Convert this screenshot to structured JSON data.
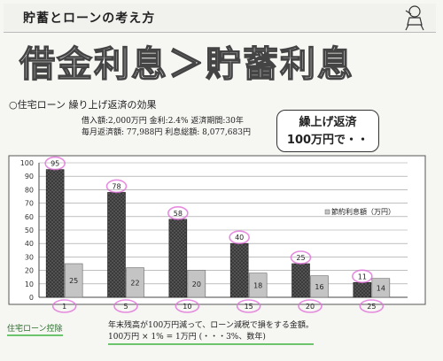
{
  "header": {
    "title": "貯蓄とローンの考え方"
  },
  "headline": "借金利息＞貯蓄利息",
  "subtitle": "○住宅ローン 繰り上げ返済の効果",
  "loan_info": {
    "line1": "借入額:2,000万円 金利:2.4% 返済期間:30年",
    "line2": "毎月返済額: 77,988円 利息総額: 8,077,683円"
  },
  "callout": {
    "line1": "繰上げ返済",
    "line2": "100万円で・・"
  },
  "chart_data": {
    "type": "bar",
    "categories": [
      "1",
      "5",
      "10",
      "15",
      "20",
      "25"
    ],
    "series": [
      {
        "name": "",
        "values": [
          95,
          78,
          58,
          40,
          25,
          11
        ],
        "color": "#3a3a3a"
      },
      {
        "name": "節約利息額（万円）",
        "values": [
          25,
          22,
          20,
          18,
          16,
          14
        ],
        "color": "#c4c4c4"
      }
    ],
    "ylim": [
      0,
      100
    ],
    "yticks": [
      0,
      10,
      20,
      30,
      40,
      50,
      60,
      70,
      80,
      90,
      100
    ],
    "xlabel": "",
    "ylabel": "",
    "title": "",
    "grid": true,
    "legend": "right",
    "highlight_color": "#e070d8"
  },
  "footer": {
    "left": "住宅ローン控除",
    "right1": "年末残高が100万円減って、ローン減税で損をする金額。",
    "right2": "100万円 × 1% = 1万円 (・・・3%、数年)"
  }
}
